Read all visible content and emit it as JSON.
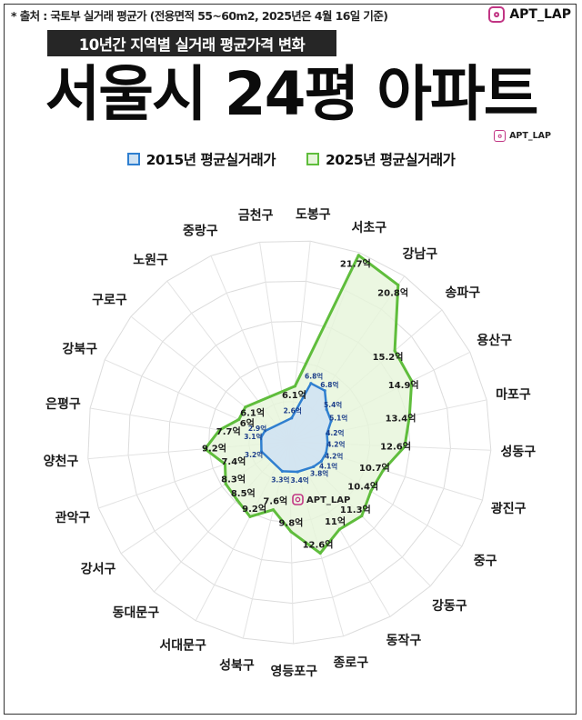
{
  "header": {
    "source": "* 출처 : 국토부 실거래 평균가 (전용면적 55~60m2, 2025년은 4월 16일 기준)",
    "brand": "APT_LAP",
    "subtitle": "10년간 지역별 실거래 평균가격 변화",
    "title": "서울시 24평 아파트",
    "brand_small": "APT_LAP"
  },
  "icons": {
    "brand": "instagram-icon"
  },
  "colors": {
    "series_2015_stroke": "#2f7fd0",
    "series_2015_fill": "#cfe2f3",
    "series_2025_stroke": "#5fbd3c",
    "series_2025_fill": "#e6f5da",
    "subtitle_bg": "#262626"
  },
  "chart_data": {
    "type": "radar",
    "categories": [
      "도봉구",
      "서초구",
      "강남구",
      "송파구",
      "용산구",
      "마포구",
      "성동구",
      "광진구",
      "중구",
      "강동구",
      "동작구",
      "종로구",
      "영등포구",
      "성북구",
      "서대문구",
      "동대문구",
      "강서구",
      "관악구",
      "양천구",
      "은평구",
      "강북구",
      "구로구",
      "노원구",
      "중랑구",
      "금천구"
    ],
    "series": [
      {
        "name": "2015년 평균실거래가",
        "values": [
          2.6,
          6.8,
          6.8,
          5.4,
          5.1,
          4.2,
          4.2,
          4.2,
          4.1,
          3.8,
          null,
          3.4,
          null,
          3.3,
          null,
          null,
          null,
          3.2,
          null,
          3.1,
          2.9,
          null,
          null,
          null,
          null
        ],
        "labels": [
          "2.6억",
          "6.8억",
          "6.8억",
          "5.4억",
          "5.1억",
          "4.2억",
          "4.2억",
          "4.2억",
          "4.1억",
          "3.8억",
          "",
          "3.4억",
          "",
          "3.3억",
          "",
          "",
          "",
          "3.2억",
          "",
          "3.1억",
          "2.9억",
          "",
          "",
          "",
          ""
        ]
      },
      {
        "name": "2025년 평균실거래가",
        "values": [
          6.1,
          21.7,
          20.8,
          15.2,
          14.9,
          13.4,
          12.6,
          10.7,
          10.4,
          11.3,
          11,
          12.6,
          9.8,
          7.6,
          9.2,
          8.5,
          8.3,
          7.4,
          9.2,
          7.7,
          6,
          6.1,
          null,
          null,
          null
        ],
        "labels": [
          "6.1억",
          "21.7억",
          "20.8억",
          "15.2억",
          "14.9억",
          "13.4억",
          "12.6억",
          "10.7억",
          "10.4억",
          "11.3억",
          "11억",
          "12.6억",
          "9.8억",
          "7.6억",
          "9.2억",
          "8.5억",
          "8.3억",
          "7.4억",
          "9.2억",
          "7.7억",
          "6억",
          "6.1억",
          "",
          "",
          ""
        ]
      }
    ],
    "unit": "억",
    "rmax": 22,
    "legend_position": "top",
    "grid": true,
    "chart_brand": "APT_LAP"
  }
}
